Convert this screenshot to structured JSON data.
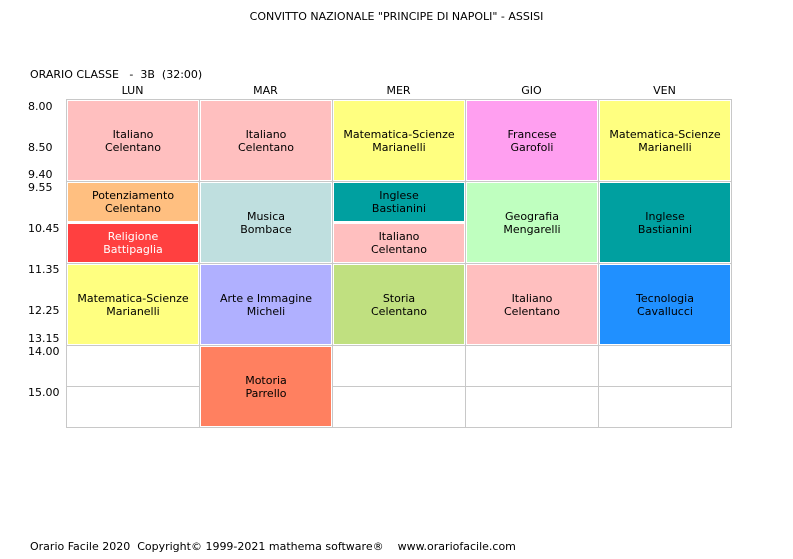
{
  "title": "CONVITTO NAZIONALE \"PRINCIPE DI NAPOLI\" - ASSISI",
  "classe_label": "ORARIO CLASSE   -  3B  (32:00)",
  "days": [
    "LUN",
    "MAR",
    "MER",
    "GIO",
    "VEN"
  ],
  "times": [
    "8.00",
    "8.50",
    "9.40",
    "9.55",
    "10.45",
    "11.35",
    "12.25",
    "13.15",
    "14.00",
    "15.00"
  ],
  "lessons": [
    {
      "subject": "Italiano",
      "teacher": "Celentano",
      "color": "#ffbfbf"
    },
    {
      "subject": "Potenziamento",
      "teacher": "Celentano",
      "color": "#ffbf80"
    },
    {
      "subject": "Religione",
      "teacher": "Battipaglia",
      "color": "#ff4040"
    },
    {
      "subject": "Matematica-Scienze",
      "teacher": "Marianelli",
      "color": "#ffff80"
    },
    {
      "subject": "Italiano",
      "teacher": "Celentano",
      "color": "#ffbfbf"
    },
    {
      "subject": "Musica",
      "teacher": "Bombace",
      "color": "#bfdfdf"
    },
    {
      "subject": "Arte e Immagine",
      "teacher": "Micheli",
      "color": "#b0b0ff"
    },
    {
      "subject": "Motoria",
      "teacher": "Parrello",
      "color": "#ff8060"
    },
    {
      "subject": "Matematica-Scienze",
      "teacher": "Marianelli",
      "color": "#ffff80"
    },
    {
      "subject": "Inglese",
      "teacher": "Bastianini",
      "color": "#00a0a0"
    },
    {
      "subject": "Italiano",
      "teacher": "Celentano",
      "color": "#ffbfbf"
    },
    {
      "subject": "Storia",
      "teacher": "Celentano",
      "color": "#c0e080"
    },
    {
      "subject": "Francese",
      "teacher": "Garofoli",
      "color": "#ff9ff0"
    },
    {
      "subject": "Geografia",
      "teacher": "Mengarelli",
      "color": "#bfffbf"
    },
    {
      "subject": "Italiano",
      "teacher": "Celentano",
      "color": "#ffbfbf"
    },
    {
      "subject": "Matematica-Scienze",
      "teacher": "Marianelli",
      "color": "#ffff80"
    },
    {
      "subject": "Inglese",
      "teacher": "Bastianini",
      "color": "#00a0a0"
    },
    {
      "subject": "Tecnologia",
      "teacher": "Cavallucci",
      "color": "#2090ff"
    }
  ],
  "footer": "Orario Facile 2020  Copyright© 1999-2021 mathema software®    www.orariofacile.com"
}
